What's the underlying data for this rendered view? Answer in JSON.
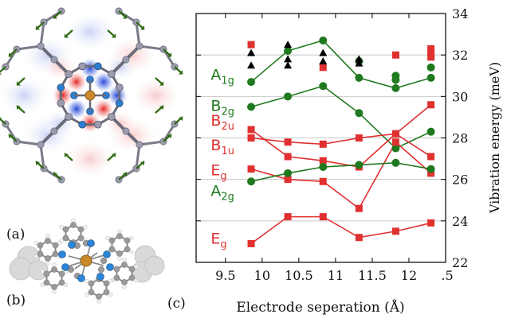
{
  "panel_labels": {
    "a": "(a)",
    "b": "(b)",
    "c": "(c)"
  },
  "colors": {
    "green": "#1f7a1f",
    "red": "#e03030",
    "black": "#000000",
    "copper": "#c98a2b",
    "nitrogen": "#1f73c9",
    "carbon": "#8a8a9a",
    "blue_density": "#1a3fd6",
    "red_density": "#e01818"
  },
  "chart_data": {
    "type": "line",
    "xlabel": "Electrode seperation (Å)",
    "ylabel": "Vibration energy (meV)",
    "xlim": [
      9.1,
      12.5
    ],
    "ylim": [
      22,
      34
    ],
    "x_ticks": [
      9.5,
      10,
      10.5,
      11,
      11.5,
      12
    ],
    "x_tick_labels": [
      "9.5",
      "10",
      "10.5",
      "11",
      "11.5",
      "12"
    ],
    "x_end_label": ".5",
    "y_ticks": [
      22,
      24,
      26,
      28,
      30,
      32,
      34
    ],
    "y_tick_labels": [
      "22",
      "24",
      "26",
      "28",
      "30",
      "32",
      "34"
    ],
    "grid": "horizontal",
    "series": [
      {
        "name": "A1g",
        "color": "green",
        "x": [
          9.85,
          10.35,
          10.83,
          11.32,
          11.82,
          12.3
        ],
        "y": [
          30.7,
          32.2,
          32.7,
          30.9,
          30.4,
          30.9
        ]
      },
      {
        "name": "B2g",
        "color": "green",
        "x": [
          9.85,
          10.35,
          10.83,
          11.32,
          11.82,
          12.3
        ],
        "y": [
          29.5,
          30.0,
          30.5,
          29.2,
          27.5,
          28.3
        ]
      },
      {
        "name": "B2u",
        "color": "red",
        "x": [
          9.85,
          10.35,
          10.83,
          11.32,
          11.82,
          12.3
        ],
        "y": [
          28.4,
          27.1,
          26.9,
          26.6,
          28.2,
          29.6
        ]
      },
      {
        "name": "B1u",
        "color": "red",
        "x": [
          9.85,
          10.35,
          10.83,
          11.32,
          11.82,
          12.3
        ],
        "y": [
          28.0,
          27.8,
          27.7,
          28.0,
          28.2,
          27.1
        ]
      },
      {
        "name": "Eg",
        "color": "red",
        "x": [
          9.85,
          10.35,
          10.83,
          11.32,
          11.82,
          12.3
        ],
        "y": [
          26.5,
          26.0,
          25.9,
          24.6,
          27.8,
          26.3
        ]
      },
      {
        "name": "A2g",
        "color": "green",
        "x": [
          9.85,
          10.35,
          10.83,
          11.32,
          11.82,
          12.3
        ],
        "y": [
          25.9,
          26.3,
          26.6,
          26.7,
          26.8,
          26.5
        ]
      },
      {
        "name": "Eg",
        "color": "red",
        "x": [
          9.85,
          10.35,
          10.83,
          11.32,
          11.82,
          12.3
        ],
        "y": [
          22.9,
          24.2,
          24.2,
          23.2,
          23.5,
          23.9
        ]
      }
    ],
    "extra_green_points": [
      {
        "x": 11.32,
        "y": 31.7
      },
      {
        "x": 11.82,
        "y": 31.0
      },
      {
        "x": 11.82,
        "y": 30.8
      },
      {
        "x": 12.3,
        "y": 31.4
      }
    ],
    "extra_red_squares": [
      {
        "x": 9.85,
        "y": 32.5
      },
      {
        "x": 10.83,
        "y": 31.4
      },
      {
        "x": 11.82,
        "y": 32.0
      },
      {
        "x": 12.3,
        "y": 32.3
      },
      {
        "x": 12.3,
        "y": 32.1
      },
      {
        "x": 12.3,
        "y": 31.9
      }
    ],
    "black_triangles": [
      {
        "x": 9.85,
        "y": 32.1
      },
      {
        "x": 9.85,
        "y": 31.5
      },
      {
        "x": 10.35,
        "y": 32.5
      },
      {
        "x": 10.35,
        "y": 31.8
      },
      {
        "x": 10.35,
        "y": 31.5
      },
      {
        "x": 10.83,
        "y": 32.1
      },
      {
        "x": 10.83,
        "y": 31.7
      },
      {
        "x": 11.32,
        "y": 31.8
      },
      {
        "x": 11.32,
        "y": 31.6
      }
    ],
    "labels": [
      {
        "base": "A",
        "sub": "1g",
        "color": "green",
        "x": 9.3,
        "y": 30.8
      },
      {
        "base": "B",
        "sub": "2g",
        "color": "green",
        "x": 9.3,
        "y": 29.3
      },
      {
        "base": "B",
        "sub": "2u",
        "color": "red",
        "x": 9.3,
        "y": 28.6
      },
      {
        "base": "B",
        "sub": "1u",
        "color": "red",
        "x": 9.3,
        "y": 27.4
      },
      {
        "base": "E",
        "sub": "g",
        "color": "red",
        "x": 9.3,
        "y": 26.2
      },
      {
        "base": "A",
        "sub": "2g",
        "color": "green",
        "x": 9.3,
        "y": 25.2
      },
      {
        "base": "E",
        "sub": "g",
        "color": "red",
        "x": 9.3,
        "y": 22.9
      }
    ]
  }
}
